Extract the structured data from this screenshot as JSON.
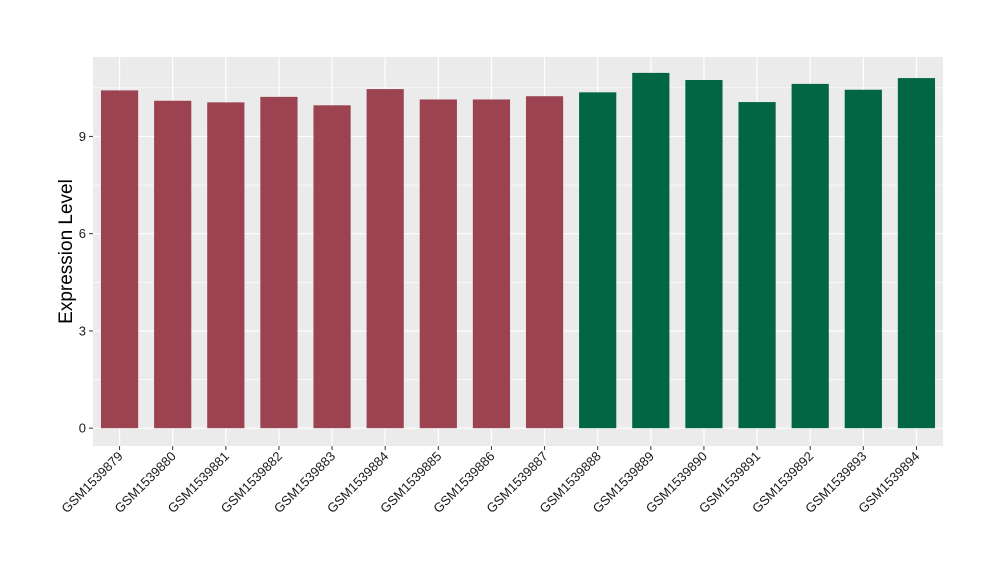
{
  "chart_data": {
    "type": "bar",
    "title": "",
    "xlabel": "",
    "ylabel": "Expression Level",
    "ylim": [
      -0.55,
      11.45
    ],
    "yticks": [
      0,
      3,
      6,
      9
    ],
    "grid": true,
    "legend": "none",
    "categories": [
      "GSM1539879",
      "GSM1539880",
      "GSM1539881",
      "GSM1539882",
      "GSM1539883",
      "GSM1539884",
      "GSM1539885",
      "GSM1539886",
      "GSM1539887",
      "GSM1539888",
      "GSM1539889",
      "GSM1539890",
      "GSM1539891",
      "GSM1539892",
      "GSM1539893",
      "GSM1539894"
    ],
    "values": [
      10.42,
      10.1,
      10.05,
      10.22,
      9.96,
      10.46,
      10.14,
      10.14,
      10.24,
      10.36,
      10.96,
      10.74,
      10.06,
      10.62,
      10.44,
      10.8
    ],
    "bar_colors": [
      "#9b4350",
      "#9b4350",
      "#9b4350",
      "#9b4350",
      "#9b4350",
      "#9b4350",
      "#9b4350",
      "#9b4350",
      "#9b4350",
      "#006644",
      "#006644",
      "#006644",
      "#006644",
      "#006644",
      "#006644",
      "#006644"
    ],
    "panel_background": "#ebebeb",
    "gridline_color": "#ffffff"
  }
}
